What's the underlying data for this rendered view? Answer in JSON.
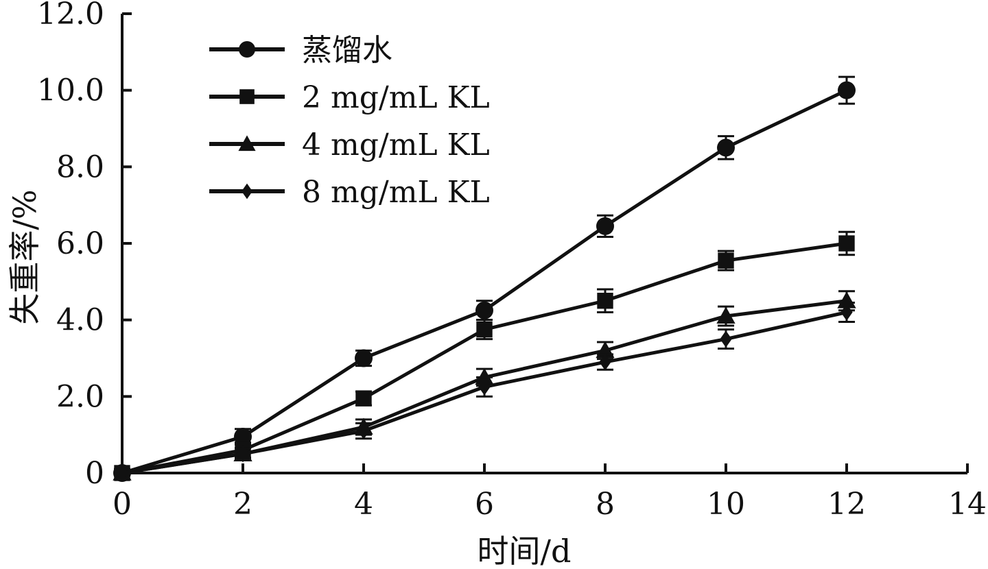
{
  "chart_data": {
    "type": "line",
    "title": "",
    "xlabel": "时间/d",
    "ylabel": "失重率/%",
    "xlim": [
      0,
      14
    ],
    "ylim": [
      0,
      12
    ],
    "xticks": [
      0,
      2,
      4,
      6,
      8,
      10,
      12,
      14
    ],
    "xtick_labels": [
      "0",
      "2",
      "4",
      "6",
      "8",
      "10",
      "12",
      "14"
    ],
    "yticks": [
      0,
      2,
      4,
      6,
      8,
      10,
      12
    ],
    "ytick_labels": [
      "0",
      "2.0",
      "4.0",
      "6.0",
      "8.0",
      "10.0",
      "12.0"
    ],
    "grid": false,
    "legend_position": "top-left",
    "color": "#111111",
    "series": [
      {
        "name": "蒸馏水",
        "marker": "circle",
        "x": [
          0,
          2,
          4,
          6,
          8,
          10,
          12
        ],
        "y": [
          0,
          0.95,
          3.0,
          4.25,
          6.45,
          8.5,
          10.0
        ],
        "err": [
          0.1,
          0.2,
          0.2,
          0.25,
          0.28,
          0.3,
          0.35
        ]
      },
      {
        "name": "2 mg/mL KL",
        "marker": "square",
        "x": [
          0,
          2,
          4,
          6,
          8,
          10,
          12
        ],
        "y": [
          0,
          0.6,
          1.95,
          3.75,
          4.5,
          5.55,
          6.0
        ],
        "err": [
          0.1,
          0.2,
          0.18,
          0.25,
          0.3,
          0.25,
          0.3
        ]
      },
      {
        "name": "4 mg/mL KL",
        "marker": "triangle",
        "x": [
          0,
          2,
          4,
          6,
          8,
          10,
          12
        ],
        "y": [
          0,
          0.5,
          1.2,
          2.5,
          3.2,
          4.1,
          4.5
        ],
        "err": [
          0.1,
          0.15,
          0.2,
          0.22,
          0.22,
          0.25,
          0.25
        ]
      },
      {
        "name": "8 mg/mL KL",
        "marker": "diamond",
        "x": [
          0,
          2,
          4,
          6,
          8,
          10,
          12
        ],
        "y": [
          0,
          0.5,
          1.1,
          2.25,
          2.9,
          3.5,
          4.2
        ],
        "err": [
          0.1,
          0.15,
          0.2,
          0.25,
          0.2,
          0.25,
          0.25
        ]
      }
    ]
  }
}
